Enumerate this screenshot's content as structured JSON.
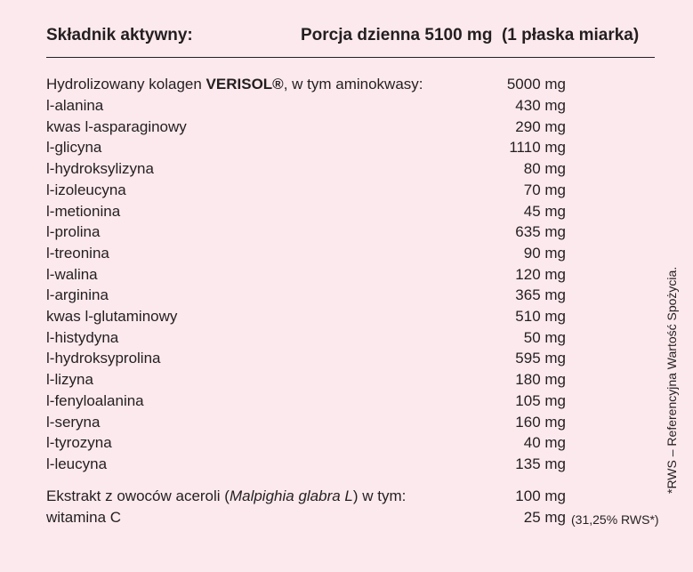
{
  "header": {
    "ingredient_label": "Składnik aktywny:",
    "portion_label": "Porcja dzienna 5100 mg  (1 płaska miarka)"
  },
  "collagen": {
    "prefix": "Hydrolizowany kolagen ",
    "brand": "VERISOL®",
    "suffix": ", w tym aminokwasy:",
    "amount": "5000 mg"
  },
  "amino_acids": [
    {
      "name": "l-alanina",
      "amount": "430 mg"
    },
    {
      "name": "kwas l-asparaginowy",
      "amount": "290 mg"
    },
    {
      "name": "l-glicyna",
      "amount": "1110 mg"
    },
    {
      "name": "l-hydroksylizyna",
      "amount": "80 mg"
    },
    {
      "name": "l-izoleucyna",
      "amount": "70 mg"
    },
    {
      "name": "l-metionina",
      "amount": "45 mg"
    },
    {
      "name": "l-prolina",
      "amount": "635 mg"
    },
    {
      "name": "l-treonina",
      "amount": "90 mg"
    },
    {
      "name": "l-walina",
      "amount": "120 mg"
    },
    {
      "name": "l-arginina",
      "amount": "365 mg"
    },
    {
      "name": "kwas l-glutaminowy",
      "amount": "510 mg"
    },
    {
      "name": "l-histydyna",
      "amount": "50 mg"
    },
    {
      "name": "l-hydroksyprolina",
      "amount": "595 mg"
    },
    {
      "name": "l-lizyna",
      "amount": "180 mg"
    },
    {
      "name": "l-fenyloalanina",
      "amount": "105 mg"
    },
    {
      "name": "l-seryna",
      "amount": "160 mg"
    },
    {
      "name": "l-tyrozyna",
      "amount": "40 mg"
    },
    {
      "name": "l-leucyna",
      "amount": "135 mg"
    }
  ],
  "extract": {
    "prefix": "Ekstrakt z owoców aceroli (",
    "latin": "Malpighia glabra L",
    "suffix": ") w tym:",
    "amount": "100 mg"
  },
  "vitamin_c": {
    "name": "witamina C",
    "amount": "25 mg",
    "note": "(31,25% RWS*)"
  },
  "footnote": "*RWS – Referencyjna Wartość Spożycia."
}
